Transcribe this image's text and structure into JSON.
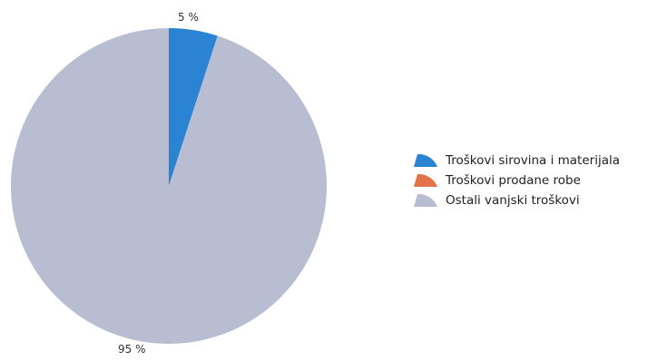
{
  "chart_data": {
    "type": "pie",
    "categories": [
      "Troškovi sirovina i materijala",
      "Troškovi prodane robe",
      "Ostali vanjski troškovi"
    ],
    "values": [
      5,
      0,
      95
    ],
    "data_labels": [
      "5 %",
      "",
      "95 %"
    ],
    "colors": [
      "#2b84d3",
      "#e2734a",
      "#b8bdd1"
    ],
    "legend": "right",
    "title": ""
  }
}
